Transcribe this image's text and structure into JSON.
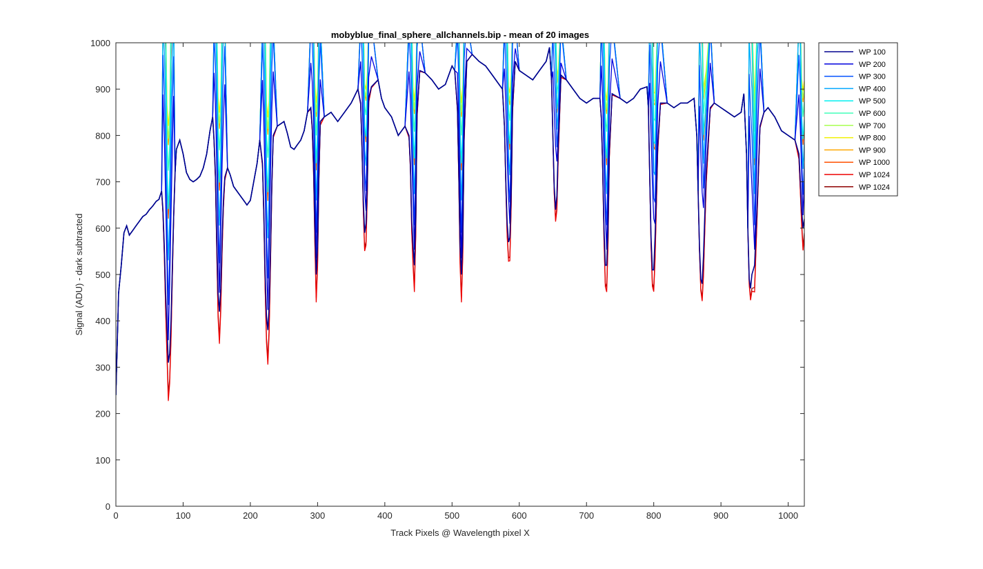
{
  "chart_data": {
    "type": "line",
    "title": "mobyblue_final_sphere_allchannels.bip - mean of 20 images",
    "xlabel": "Track Pixels @ Wavelength pixel X",
    "ylabel": "Signal (ADU) - dark subtracted",
    "xlim": [
      0,
      1024
    ],
    "ylim": [
      0,
      1000
    ],
    "xticks": [
      0,
      100,
      200,
      300,
      400,
      500,
      600,
      700,
      800,
      900,
      1000
    ],
    "yticks": [
      0,
      100,
      200,
      300,
      400,
      500,
      600,
      700,
      800,
      900,
      1000
    ],
    "grid": false,
    "legend_position": "outside-top-right",
    "x_peaks": [
      78,
      154,
      226,
      298,
      372,
      444,
      514,
      586,
      658,
      730,
      802,
      876,
      950,
      1022
    ],
    "series": [
      {
        "name": "WP 100",
        "color": "#00008f",
        "points": [
          [
            0,
            240
          ],
          [
            4,
            460
          ],
          [
            8,
            520
          ],
          [
            12,
            590
          ],
          [
            16,
            605
          ],
          [
            20,
            585
          ],
          [
            25,
            595
          ],
          [
            30,
            605
          ],
          [
            35,
            615
          ],
          [
            40,
            625
          ],
          [
            45,
            630
          ],
          [
            50,
            640
          ],
          [
            55,
            648
          ],
          [
            60,
            658
          ],
          [
            64,
            662
          ],
          [
            68,
            680
          ],
          [
            70,
            640
          ],
          [
            72,
            560
          ],
          [
            74,
            460
          ],
          [
            76,
            380
          ],
          [
            78,
            310
          ],
          [
            80,
            330
          ],
          [
            82,
            400
          ],
          [
            84,
            520
          ],
          [
            86,
            630
          ],
          [
            88,
            720
          ],
          [
            90,
            770
          ],
          [
            95,
            790
          ],
          [
            100,
            760
          ],
          [
            105,
            720
          ],
          [
            110,
            705
          ],
          [
            115,
            700
          ],
          [
            120,
            705
          ],
          [
            125,
            712
          ],
          [
            130,
            730
          ],
          [
            135,
            760
          ],
          [
            140,
            810
          ],
          [
            144,
            840
          ],
          [
            146,
            790
          ],
          [
            148,
            720
          ],
          [
            150,
            580
          ],
          [
            152,
            460
          ],
          [
            154,
            420
          ],
          [
            156,
            470
          ],
          [
            158,
            580
          ],
          [
            160,
            660
          ],
          [
            162,
            710
          ],
          [
            166,
            730
          ],
          [
            170,
            715
          ],
          [
            175,
            690
          ],
          [
            180,
            680
          ],
          [
            185,
            670
          ],
          [
            190,
            660
          ],
          [
            195,
            650
          ],
          [
            200,
            660
          ],
          [
            205,
            700
          ],
          [
            210,
            740
          ],
          [
            214,
            790
          ],
          [
            218,
            740
          ],
          [
            220,
            640
          ],
          [
            222,
            500
          ],
          [
            224,
            410
          ],
          [
            226,
            380
          ],
          [
            228,
            430
          ],
          [
            230,
            560
          ],
          [
            232,
            700
          ],
          [
            234,
            800
          ],
          [
            240,
            820
          ],
          [
            250,
            830
          ],
          [
            255,
            805
          ],
          [
            260,
            775
          ],
          [
            265,
            770
          ],
          [
            270,
            780
          ],
          [
            275,
            790
          ],
          [
            280,
            810
          ],
          [
            285,
            850
          ],
          [
            290,
            860
          ],
          [
            292,
            820
          ],
          [
            294,
            740
          ],
          [
            296,
            600
          ],
          [
            298,
            500
          ],
          [
            300,
            560
          ],
          [
            302,
            720
          ],
          [
            304,
            830
          ],
          [
            310,
            840
          ],
          [
            320,
            850
          ],
          [
            330,
            830
          ],
          [
            340,
            850
          ],
          [
            350,
            870
          ],
          [
            360,
            900
          ],
          [
            364,
            870
          ],
          [
            366,
            780
          ],
          [
            368,
            660
          ],
          [
            370,
            590
          ],
          [
            372,
            610
          ],
          [
            374,
            700
          ],
          [
            376,
            880
          ],
          [
            380,
            905
          ],
          [
            390,
            920
          ],
          [
            395,
            880
          ],
          [
            400,
            860
          ],
          [
            410,
            840
          ],
          [
            420,
            800
          ],
          [
            430,
            820
          ],
          [
            436,
            800
          ],
          [
            438,
            740
          ],
          [
            440,
            620
          ],
          [
            442,
            560
          ],
          [
            444,
            520
          ],
          [
            446,
            620
          ],
          [
            448,
            850
          ],
          [
            452,
            940
          ],
          [
            460,
            935
          ],
          [
            470,
            920
          ],
          [
            480,
            900
          ],
          [
            490,
            910
          ],
          [
            500,
            950
          ],
          [
            504,
            940
          ],
          [
            508,
            860
          ],
          [
            510,
            720
          ],
          [
            512,
            560
          ],
          [
            514,
            500
          ],
          [
            516,
            580
          ],
          [
            518,
            800
          ],
          [
            522,
            960
          ],
          [
            530,
            975
          ],
          [
            540,
            960
          ],
          [
            550,
            950
          ],
          [
            560,
            930
          ],
          [
            570,
            910
          ],
          [
            575,
            900
          ],
          [
            578,
            820
          ],
          [
            580,
            700
          ],
          [
            582,
            610
          ],
          [
            584,
            570
          ],
          [
            586,
            580
          ],
          [
            588,
            680
          ],
          [
            590,
            860
          ],
          [
            594,
            960
          ],
          [
            600,
            940
          ],
          [
            610,
            930
          ],
          [
            620,
            920
          ],
          [
            630,
            940
          ],
          [
            640,
            960
          ],
          [
            645,
            990
          ],
          [
            648,
            920
          ],
          [
            650,
            800
          ],
          [
            652,
            690
          ],
          [
            654,
            640
          ],
          [
            656,
            670
          ],
          [
            658,
            780
          ],
          [
            662,
            930
          ],
          [
            670,
            920
          ],
          [
            680,
            900
          ],
          [
            690,
            880
          ],
          [
            700,
            870
          ],
          [
            710,
            880
          ],
          [
            720,
            880
          ],
          [
            722,
            840
          ],
          [
            724,
            740
          ],
          [
            726,
            600
          ],
          [
            728,
            520
          ],
          [
            730,
            520
          ],
          [
            732,
            600
          ],
          [
            734,
            770
          ],
          [
            738,
            890
          ],
          [
            750,
            880
          ],
          [
            760,
            870
          ],
          [
            770,
            880
          ],
          [
            780,
            900
          ],
          [
            790,
            905
          ],
          [
            792,
            860
          ],
          [
            794,
            720
          ],
          [
            796,
            580
          ],
          [
            798,
            510
          ],
          [
            800,
            510
          ],
          [
            802,
            580
          ],
          [
            806,
            780
          ],
          [
            810,
            870
          ],
          [
            820,
            870
          ],
          [
            830,
            860
          ],
          [
            840,
            870
          ],
          [
            850,
            870
          ],
          [
            860,
            880
          ],
          [
            864,
            800
          ],
          [
            866,
            680
          ],
          [
            868,
            560
          ],
          [
            870,
            490
          ],
          [
            872,
            480
          ],
          [
            874,
            540
          ],
          [
            878,
            720
          ],
          [
            884,
            860
          ],
          [
            890,
            870
          ],
          [
            900,
            860
          ],
          [
            910,
            850
          ],
          [
            920,
            840
          ],
          [
            930,
            850
          ],
          [
            934,
            890
          ],
          [
            938,
            760
          ],
          [
            940,
            600
          ],
          [
            942,
            490
          ],
          [
            944,
            470
          ],
          [
            946,
            500
          ],
          [
            950,
            520
          ],
          [
            954,
            660
          ],
          [
            958,
            820
          ],
          [
            964,
            850
          ],
          [
            970,
            860
          ],
          [
            980,
            840
          ],
          [
            990,
            810
          ],
          [
            1000,
            800
          ],
          [
            1010,
            790
          ],
          [
            1016,
            760
          ],
          [
            1018,
            700
          ],
          [
            1020,
            640
          ],
          [
            1022,
            600
          ],
          [
            1024,
            620
          ]
        ]
      },
      {
        "name": "WP 200",
        "color": "#0000dd",
        "depth": 0.93
      },
      {
        "name": "WP 300",
        "color": "#0050ff",
        "depth": 0.82
      },
      {
        "name": "WP 400",
        "color": "#00a8ff",
        "depth": 0.68
      },
      {
        "name": "WP 500",
        "color": "#00f0f0",
        "depth": 0.52
      },
      {
        "name": "WP 600",
        "color": "#40ffb8",
        "depth": 0.4
      },
      {
        "name": "WP 700",
        "color": "#a8ff50",
        "depth": 0.3
      },
      {
        "name": "WP 800",
        "color": "#f0f000",
        "depth": 0.26
      },
      {
        "name": "WP 900",
        "color": "#ffa800",
        "depth": 0.32
      },
      {
        "name": "WP 1000",
        "color": "#ff5000",
        "depth": 0.55
      },
      {
        "name": "WP 1024",
        "color": "#ee0000",
        "depth": 1.12
      },
      {
        "name": "WP 1024",
        "color": "#8f0000",
        "depth": 1.1
      }
    ]
  }
}
